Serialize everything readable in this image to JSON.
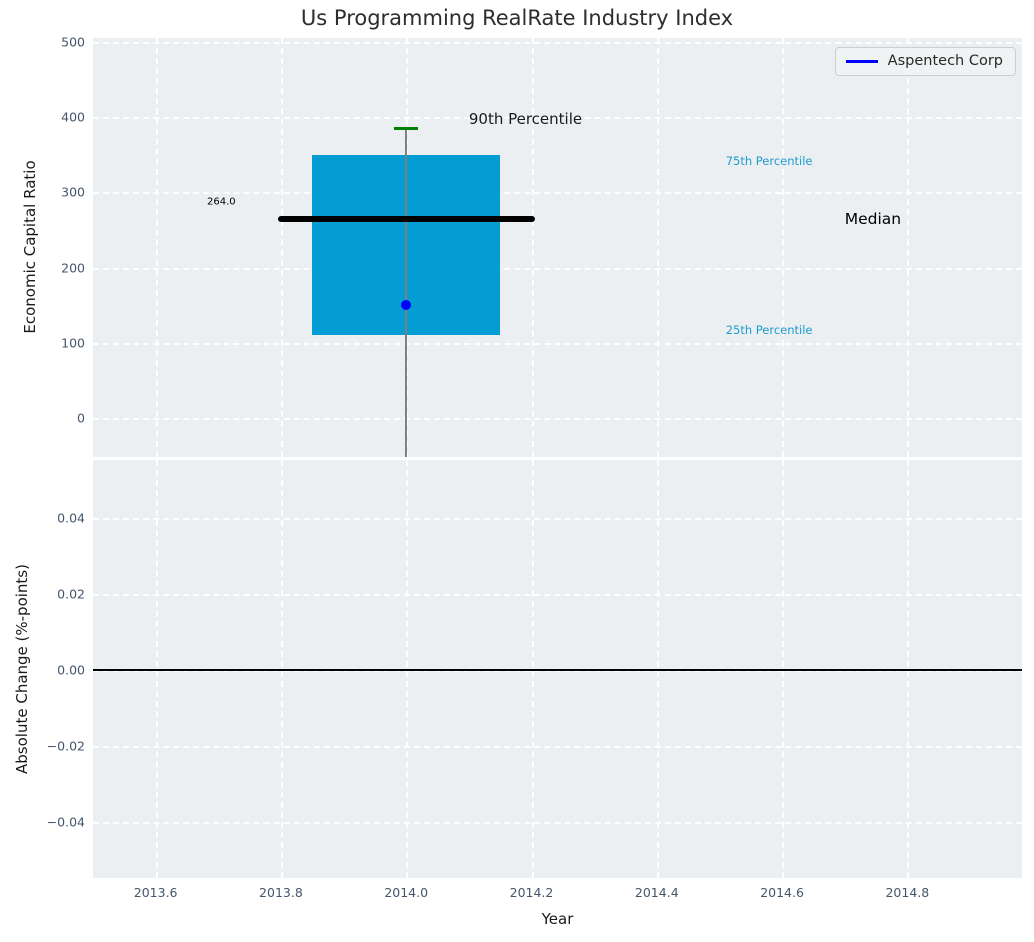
{
  "chart_data": {
    "type": "boxplot",
    "title": "Us Programming RealRate Industry Index",
    "xlabel": "Year",
    "xlim": [
      2013.5,
      2014.983
    ],
    "xticks": [
      {
        "v": 2013.6,
        "label": "2013.6"
      },
      {
        "v": 2013.8,
        "label": "2013.8"
      },
      {
        "v": 2014.0,
        "label": "2014.0"
      },
      {
        "v": 2014.2,
        "label": "2014.2"
      },
      {
        "v": 2014.4,
        "label": "2014.4"
      },
      {
        "v": 2014.6,
        "label": "2014.6"
      },
      {
        "v": 2014.8,
        "label": "2014.8"
      }
    ],
    "legend": {
      "label": "Aspentech Corp",
      "line_color": "#0000ff",
      "position": "upper right"
    },
    "colors": {
      "axes_bg": "#eceff1",
      "grid": "#ffffff",
      "box_fill": "#049dd3",
      "median_line": "#000000",
      "whisker": "#7f7f7f",
      "cap_90th": "#008000",
      "point": "#0000ff",
      "tick_label": "#43566a",
      "annotation_cyan": "#1b9cce",
      "zero_line": "#000000"
    },
    "subplots": [
      {
        "name": "economic-capital-ratio",
        "ylabel": "Economic Capital Ratio",
        "ylim": [
          -51.9,
          505.3
        ],
        "yticks": [
          {
            "v": 500,
            "label": "500"
          },
          {
            "v": 400,
            "label": "400"
          },
          {
            "v": 300,
            "label": "300"
          },
          {
            "v": 200,
            "label": "200"
          },
          {
            "v": 100,
            "label": "100"
          },
          {
            "v": 0,
            "label": "0"
          }
        ],
        "box": {
          "x": 2014.0,
          "half_width": 0.15,
          "q1": 110,
          "median": 264,
          "q3": 350,
          "p90": 385,
          "whisker_bottom_clipped": true
        },
        "median_line": {
          "y": 264,
          "x1": 2013.795,
          "x2": 2014.205
        },
        "cap_90th": {
          "y": 385,
          "x1": 2013.981,
          "x2": 2014.019
        },
        "point": {
          "series": "Aspentech Corp",
          "x": 2014.0,
          "y": 150
        },
        "annotations": [
          {
            "text": "264.0",
            "x": 2013.682,
            "y": 287,
            "size": 10,
            "color": "#000000"
          },
          {
            "text": "90th Percentile",
            "x": 2014.1,
            "y": 397,
            "size": 15,
            "color": "#1a1a1a"
          },
          {
            "text": "75th Percentile",
            "x": 2014.51,
            "y": 342,
            "size": 11.5,
            "color": "#1b9cce"
          },
          {
            "text": "Median",
            "x": 2014.7,
            "y": 264,
            "size": 15.5,
            "color": "#000000"
          },
          {
            "text": "25th Percentile",
            "x": 2014.51,
            "y": 117,
            "size": 11.5,
            "color": "#1b9cce"
          }
        ]
      },
      {
        "name": "absolute-change",
        "ylabel": "Absolute Change (%-points)",
        "ylim": [
          -0.0547,
          0.0553
        ],
        "yticks": [
          {
            "v": 0.04,
            "label": "0.04"
          },
          {
            "v": 0.02,
            "label": "0.02"
          },
          {
            "v": 0.0,
            "label": "0.00"
          },
          {
            "v": -0.02,
            "label": "−0.02"
          },
          {
            "v": -0.04,
            "label": "−0.04"
          }
        ],
        "zero_line": {
          "y": 0.0
        }
      }
    ]
  }
}
